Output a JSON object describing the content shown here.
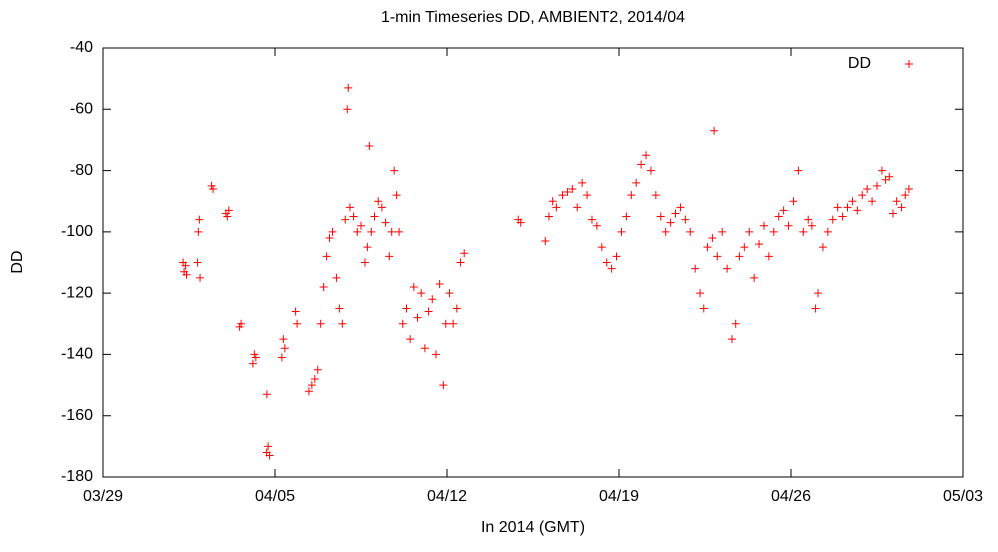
{
  "chart_data": {
    "type": "scatter",
    "title": "1-min Timeseries DD, AMBIENT2, 2014/04",
    "xlabel": "In 2014 (GMT)",
    "ylabel": "DD",
    "xlim": [
      0,
      35
    ],
    "xticks": [
      {
        "value": 0,
        "label": "03/29"
      },
      {
        "value": 7,
        "label": "04/05"
      },
      {
        "value": 14,
        "label": "04/12"
      },
      {
        "value": 21,
        "label": "04/19"
      },
      {
        "value": 28,
        "label": "04/26"
      },
      {
        "value": 35,
        "label": "05/03"
      }
    ],
    "ylim": [
      -180,
      -40
    ],
    "yticks": [
      -180,
      -160,
      -140,
      -120,
      -100,
      -80,
      -60,
      -40
    ],
    "legend": "top-right",
    "x": [
      3.26,
      3.3,
      3.36,
      3.4,
      3.85,
      3.88,
      3.92,
      3.95,
      4.42,
      4.48,
      5.0,
      5.06,
      5.12,
      5.56,
      5.62,
      6.1,
      6.16,
      6.22,
      6.66,
      6.67,
      6.72,
      6.78,
      7.28,
      7.34,
      7.4,
      7.84,
      7.9,
      8.38,
      8.5,
      8.62,
      8.74,
      8.86,
      8.98,
      9.1,
      9.22,
      9.34,
      9.5,
      9.62,
      9.74,
      9.86,
      9.94,
      9.98,
      10.05,
      10.2,
      10.35,
      10.5,
      10.66,
      10.76,
      10.84,
      10.92,
      11.05,
      11.2,
      11.35,
      11.5,
      11.65,
      11.75,
      11.85,
      11.95,
      12.05,
      12.2,
      12.35,
      12.5,
      12.65,
      12.8,
      12.95,
      13.1,
      13.25,
      13.4,
      13.55,
      13.7,
      13.85,
      13.95,
      14.1,
      14.25,
      14.4,
      14.55,
      14.7,
      16.9,
      17.0,
      18.0,
      18.15,
      18.3,
      18.45,
      18.7,
      18.9,
      19.1,
      19.3,
      19.5,
      19.7,
      19.9,
      20.1,
      20.3,
      20.5,
      20.7,
      20.9,
      21.1,
      21.3,
      21.5,
      21.7,
      21.9,
      22.1,
      22.3,
      22.5,
      22.7,
      22.9,
      23.1,
      23.3,
      23.5,
      23.7,
      23.9,
      24.1,
      24.3,
      24.45,
      24.6,
      24.8,
      24.87,
      25.0,
      25.2,
      25.4,
      25.6,
      25.75,
      25.9,
      26.1,
      26.3,
      26.5,
      26.7,
      26.9,
      27.1,
      27.3,
      27.5,
      27.7,
      27.9,
      28.1,
      28.3,
      28.5,
      28.7,
      28.85,
      29.0,
      29.1,
      29.3,
      29.5,
      29.7,
      29.9,
      30.1,
      30.3,
      30.5,
      30.7,
      30.9,
      31.1,
      31.3,
      31.5,
      31.7,
      31.85,
      32.0,
      32.15,
      32.3,
      32.5,
      32.65,
      32.8
    ],
    "series": [
      {
        "name": "DD",
        "color": "#ff0000",
        "values": [
          -110,
          -113,
          -111,
          -114,
          -110,
          -100,
          -96,
          -115,
          -85,
          -86,
          -94,
          -95,
          -93,
          -131,
          -130,
          -143,
          -140,
          -141,
          -172,
          -153,
          -170,
          -173,
          -141,
          -135,
          -138,
          -126,
          -130,
          -152,
          -150,
          -148,
          -145,
          -130,
          -118,
          -108,
          -102,
          -100,
          -115,
          -125,
          -130,
          -96,
          -60,
          -53,
          -92,
          -95,
          -100,
          -98,
          -110,
          -105,
          -72,
          -100,
          -95,
          -90,
          -92,
          -97,
          -108,
          -100,
          -80,
          -88,
          -100,
          -130,
          -125,
          -135,
          -118,
          -128,
          -120,
          -138,
          -126,
          -122,
          -140,
          -117,
          -150,
          -130,
          -120,
          -130,
          -125,
          -110,
          -107,
          -96,
          -97,
          -103,
          -95,
          -90,
          -92,
          -88,
          -87,
          -86,
          -92,
          -84,
          -88,
          -96,
          -98,
          -105,
          -110,
          -112,
          -108,
          -100,
          -95,
          -88,
          -84,
          -78,
          -75,
          -80,
          -88,
          -95,
          -100,
          -97,
          -94,
          -92,
          -96,
          -100,
          -112,
          -120,
          -125,
          -105,
          -102,
          -67,
          -108,
          -100,
          -112,
          -135,
          -130,
          -108,
          -105,
          -100,
          -115,
          -104,
          -98,
          -108,
          -100,
          -95,
          -93,
          -98,
          -90,
          -80,
          -100,
          -96,
          -98,
          -125,
          -120,
          -105,
          -100,
          -96,
          -92,
          -95,
          -92,
          -90,
          -93,
          -88,
          -86,
          -90,
          -85,
          -80,
          -83,
          -82,
          -94,
          -90,
          -92,
          -88,
          -86
        ]
      }
    ]
  }
}
